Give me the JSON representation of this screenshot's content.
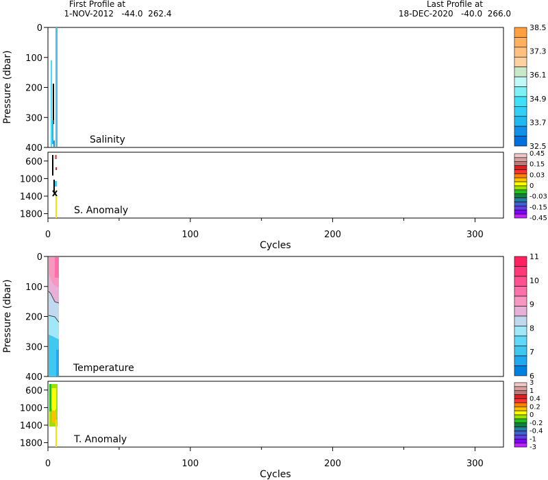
{
  "header": {
    "first_line1": "First Profile at",
    "first_line2": "1-NOV-2012   -44.0  262.4",
    "last_line1": "Last Profile at",
    "last_line2": "18-DEC-2020   -40.0  266.0"
  },
  "x_axis": {
    "label": "Cycles",
    "ticks": [
      0,
      100,
      200,
      300
    ],
    "range": [
      0,
      320
    ]
  },
  "panels": [
    {
      "id": "salinity",
      "label": "Salinity",
      "ylabel": "Pressure (dbar)",
      "yticks": [
        0,
        100,
        200,
        300,
        400
      ],
      "yrange": [
        0,
        400
      ],
      "colorbar": {
        "labels": [
          "38.5",
          "37.3",
          "36.1",
          "34.9",
          "33.7",
          "32.5"
        ],
        "colors": [
          "#ffa040",
          "#ffb060",
          "#ffc080",
          "#ffd0a0",
          "#c8e8c8",
          "#c0f8f8",
          "#80f0f8",
          "#40e0f8",
          "#30d0f8",
          "#20b8f0",
          "#1090e8",
          "#0070e0"
        ]
      }
    },
    {
      "id": "s-anomaly",
      "label": "S. Anomaly",
      "yticks": [
        600,
        1000,
        1400,
        1800
      ],
      "yrange": [
        400,
        1900
      ],
      "colorbar": {
        "labels": [
          "0.45",
          "0.15",
          "0.03",
          "0",
          "-0.03",
          "-0.15",
          "-0.45"
        ],
        "colors": [
          "#f0c8c8",
          "#d8a0a0",
          "#c07878",
          "#e02020",
          "#ff3030",
          "#ff8000",
          "#ffc000",
          "#ffff00",
          "#a0e000",
          "#20c020",
          "#108040",
          "#2080a0",
          "#4060d0",
          "#6040e0",
          "#8000ff",
          "#c020ff"
        ]
      }
    },
    {
      "id": "temperature",
      "label": "Temperature",
      "ylabel": "Pressure (dbar)",
      "yticks": [
        0,
        100,
        200,
        300,
        400
      ],
      "yrange": [
        0,
        400
      ],
      "colorbar": {
        "labels": [
          "11",
          "10",
          "9",
          "8",
          "7",
          "6"
        ],
        "colors": [
          "#ff2060",
          "#ff3878",
          "#ff5090",
          "#ff70a8",
          "#f898c0",
          "#e8b0d8",
          "#c0d8f0",
          "#a0e8f8",
          "#60d8f8",
          "#40c8f0",
          "#20a8f0",
          "#0080e0"
        ]
      }
    },
    {
      "id": "t-anomaly",
      "label": "T. Anomaly",
      "yticks": [
        600,
        1000,
        1400,
        1800
      ],
      "yrange": [
        400,
        1900
      ],
      "colorbar": {
        "labels": [
          "3",
          "1",
          "0.4",
          "0.2",
          "0",
          "-0.2",
          "-0.4",
          "-1",
          "-3"
        ],
        "colors": [
          "#f0c8c8",
          "#d8a0a0",
          "#c07878",
          "#e02020",
          "#ff3030",
          "#ff8000",
          "#ffc000",
          "#ffff00",
          "#a0e000",
          "#20c020",
          "#108040",
          "#2080a0",
          "#4060d0",
          "#6040e0",
          "#8000ff",
          "#c020ff"
        ]
      }
    }
  ],
  "chart_data": [
    {
      "type": "heatmap",
      "title": "Salinity",
      "xlabel": "Cycles",
      "ylabel": "Pressure (dbar)",
      "xlim": [
        0,
        320
      ],
      "ylim": [
        400,
        0
      ],
      "profiles": [
        {
          "cycle": 2,
          "top": 120,
          "bottom": 400,
          "color": "#40e0f8"
        },
        {
          "cycle": 3,
          "top": 195,
          "bottom": 330,
          "color": "#000000"
        },
        {
          "cycle": 5,
          "top": 0,
          "bottom": 400,
          "color": "#40c8f0"
        }
      ]
    },
    {
      "type": "heatmap",
      "title": "S. Anomaly",
      "xlabel": "Cycles",
      "xlim": [
        0,
        320
      ],
      "ylim": [
        1900,
        400
      ]
    },
    {
      "type": "heatmap",
      "title": "Temperature",
      "xlabel": "Cycles",
      "ylabel": "Pressure (dbar)",
      "xlim": [
        0,
        320
      ],
      "ylim": [
        400,
        0
      ]
    },
    {
      "type": "heatmap",
      "title": "T. Anomaly",
      "xlabel": "Cycles",
      "xlim": [
        0,
        320
      ],
      "ylim": [
        1900,
        400
      ]
    }
  ]
}
